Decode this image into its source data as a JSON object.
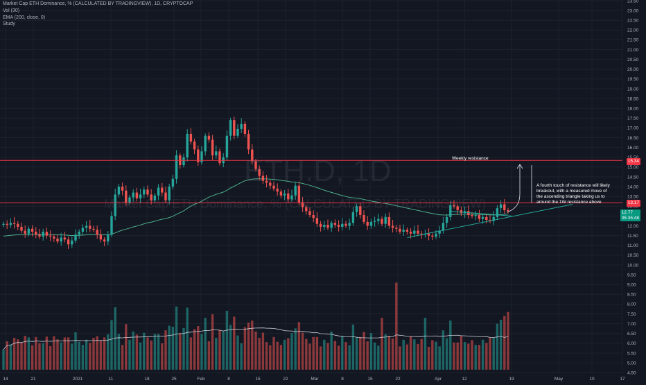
{
  "header": {
    "title": "Market Cap ETH Dominance, % (CALCULATED BY TRADINGVIEW), 1D, CRYPTOCAP",
    "vol": "Vol (30)",
    "ema": "EMA (200, close, 0)",
    "study": "Study"
  },
  "watermark": {
    "symbol": "ETH.D, 1D",
    "name": "Market Cap ETH Dominance, % (CALCULATED BY TRADINGVIEW)"
  },
  "annotations": {
    "weekly_resistance": "Weekly resistance",
    "breakout_note": "A fourth touch of resistance will likely breakout, with a measured move of the ascending triangle taking us to around the 1W resistance above"
  },
  "price_tags": {
    "weekly": "15.34",
    "lower": "13.17",
    "last_price": "12.77",
    "countdown": "05:35:48"
  },
  "colors": {
    "background": "#131722",
    "up": "#26a69a",
    "down": "#ef5350",
    "ema": "#4caf8a",
    "resistance": "#f23645",
    "trendline": "#26a69a"
  },
  "chart_data": {
    "type": "candlestick",
    "title": "Market Cap ETH Dominance, % (CALCULATED BY TRADINGVIEW), 1D, CRYPTOCAP",
    "y_ticks": [
      "4.50",
      "5.00",
      "5.50",
      "6.00",
      "6.50",
      "7.00",
      "7.50",
      "8.00",
      "8.50",
      "9.00",
      "9.50",
      "10.00",
      "10.50",
      "11.00",
      "11.50",
      "12.00",
      "12.50",
      "13.00",
      "13.50",
      "14.00",
      "14.50",
      "15.00",
      "15.50",
      "16.00",
      "16.50",
      "17.00",
      "17.50",
      "18.00",
      "18.50",
      "19.00",
      "19.50",
      "20.00",
      "20.50",
      "21.00",
      "21.50",
      "22.00",
      "22.50",
      "23.00",
      "23.50"
    ],
    "x_ticks": [
      "14",
      "21",
      "2021",
      "11",
      "18",
      "25",
      "Feb",
      "8",
      "15",
      "22",
      "Mar",
      "8",
      "15",
      "22",
      "Apr",
      "12",
      "19",
      "May",
      "10",
      "17"
    ],
    "ylim": [
      4.4,
      23.5
    ],
    "resistance_levels": [
      15.34,
      13.17
    ],
    "close": [
      12.1,
      12.05,
      12.15,
      12.1,
      11.95,
      11.75,
      11.6,
      11.85,
      11.7,
      11.55,
      11.45,
      11.7,
      11.5,
      11.45,
      11.35,
      11.2,
      11.4,
      11.3,
      11.05,
      11.25,
      11.55,
      11.7,
      11.9,
      12.0,
      11.85,
      11.8,
      11.55,
      11.3,
      11.2,
      11.55,
      12.5,
      13.6,
      14.0,
      13.8,
      13.2,
      13.45,
      13.7,
      13.4,
      13.6,
      13.85,
      13.6,
      13.3,
      13.55,
      13.95,
      13.7,
      13.3,
      14.0,
      14.4,
      15.6,
      15.1,
      15.5,
      16.7,
      16.3,
      15.9,
      15.25,
      15.8,
      16.6,
      16.4,
      15.6,
      15.8,
      15.2,
      15.5,
      16.6,
      17.4,
      16.6,
      16.95,
      17.2,
      16.7,
      15.9,
      15.3,
      14.9,
      14.55,
      14.3,
      14.2,
      14.05,
      13.9,
      13.75,
      13.55,
      13.65,
      13.35,
      13.55,
      14.05,
      13.2,
      12.95,
      12.75,
      12.55,
      12.4,
      12.1,
      11.95,
      12.05,
      11.9,
      12.15,
      12.05,
      11.95,
      12.1,
      12.0,
      12.15,
      12.7,
      13.0,
      12.55,
      12.2,
      12.0,
      12.2,
      12.25,
      12.35,
      12.1,
      12.45,
      12.0,
      11.9,
      11.85,
      11.7,
      11.8,
      11.7,
      11.6,
      11.75,
      11.6,
      11.55,
      11.6,
      11.5,
      11.45,
      11.6,
      11.75,
      12.15,
      12.45,
      13.05,
      13.0,
      12.8,
      12.65,
      12.75,
      12.55,
      12.5,
      12.55,
      12.35,
      12.45,
      12.3,
      12.25,
      12.45,
      12.9,
      13.1,
      12.8,
      12.75
    ]
  }
}
